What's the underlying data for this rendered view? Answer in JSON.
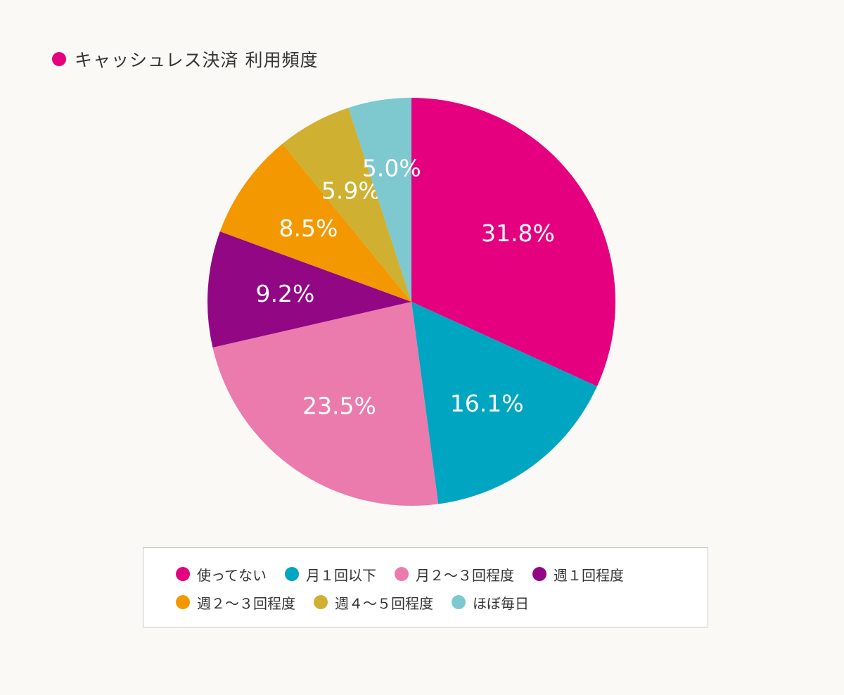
{
  "title": "キャッシュレス決済 利用頻度",
  "title_marker_color": "#e4007f",
  "chart_data": {
    "type": "pie",
    "title": "キャッシュレス決済 利用頻度",
    "unit": "%",
    "legend_position": "bottom",
    "slices": [
      {
        "label": "使ってない",
        "value": 31.8,
        "display": "31.8%",
        "color": "#e4007f"
      },
      {
        "label": "月１回以下",
        "value": 16.1,
        "display": "16.1%",
        "color": "#00a5c1"
      },
      {
        "label": "月２〜３回程度",
        "value": 23.5,
        "display": "23.5%",
        "color": "#eb7aad"
      },
      {
        "label": "週１回程度",
        "value": 9.2,
        "display": "9.2%",
        "color": "#920783"
      },
      {
        "label": "週２〜３回程度",
        "value": 8.5,
        "display": "8.5%",
        "color": "#f39800"
      },
      {
        "label": "週４〜５回程度",
        "value": 5.9,
        "display": "5.9%",
        "color": "#cfb031"
      },
      {
        "label": "ほぼ毎日",
        "value": 5.0,
        "display": "5.0%",
        "color": "#7ec8d0"
      }
    ]
  },
  "legend": {
    "rows": [
      [
        {
          "label": "使ってない",
          "color": "#e4007f"
        },
        {
          "label": "月１回以下",
          "color": "#00a5c1"
        },
        {
          "label": "月２〜３回程度",
          "color": "#eb7aad"
        },
        {
          "label": "週１回程度",
          "color": "#920783"
        }
      ],
      [
        {
          "label": "週２〜３回程度",
          "color": "#f39800"
        },
        {
          "label": "週４〜５回程度",
          "color": "#cfb031"
        },
        {
          "label": "ほぼ毎日",
          "color": "#7ec8d0"
        }
      ]
    ]
  }
}
